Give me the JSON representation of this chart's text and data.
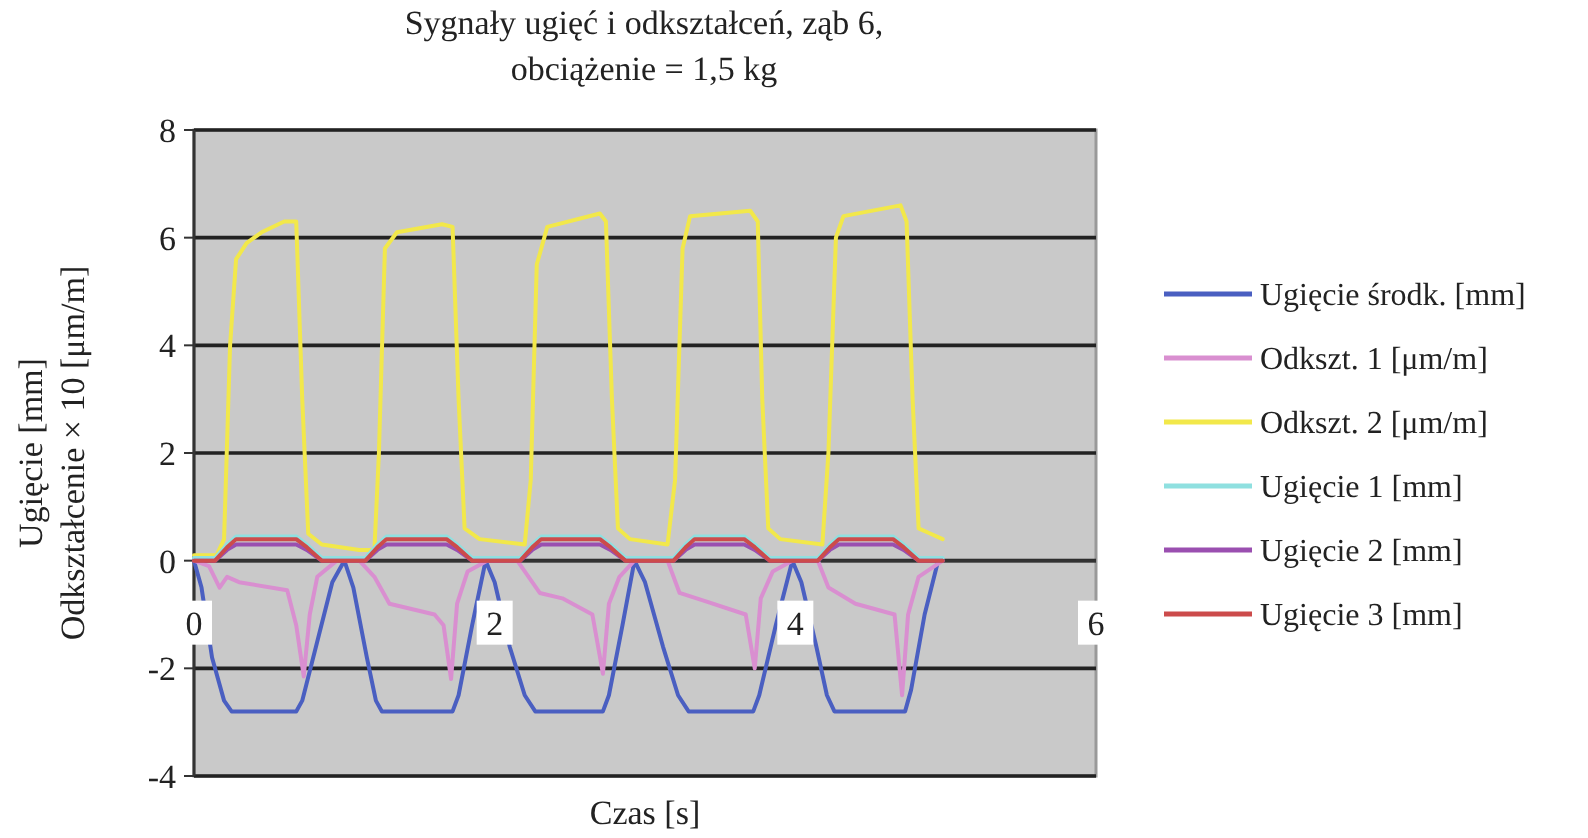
{
  "chart_data": {
    "type": "line",
    "title": "Sygnały ugięć i odkształceń, ząb 6,\nobciążenie = 1,5 kg",
    "xlabel": "Czas [s]",
    "ylabel": "Ugięcie [mm]\nOdkształcenie × 10 [μm/m]",
    "xlim": [
      0,
      6
    ],
    "xticks": [
      0,
      2,
      4,
      6
    ],
    "ylim": [
      -4,
      8
    ],
    "yticks": [
      -4,
      -2,
      0,
      2,
      4,
      6,
      8
    ],
    "grid": "y",
    "legend": "right",
    "line_style": "solid",
    "marker": "none",
    "series": [
      {
        "name": "Ugięcie środk. [mm]",
        "color": "#4a5fc1",
        "x": [
          0,
          0.05,
          0.12,
          0.2,
          0.25,
          0.68,
          0.72,
          0.82,
          0.92,
          1.0,
          1.06,
          1.15,
          1.21,
          1.25,
          1.72,
          1.76,
          1.85,
          1.94,
          2.0,
          2.1,
          2.2,
          2.27,
          2.72,
          2.76,
          2.85,
          2.93,
          3.0,
          3.12,
          3.22,
          3.29,
          3.72,
          3.76,
          3.87,
          3.98,
          4.04,
          4.14,
          4.21,
          4.26,
          4.73,
          4.77,
          4.86,
          4.95
        ],
        "values": [
          0,
          -0.5,
          -1.8,
          -2.6,
          -2.8,
          -2.8,
          -2.6,
          -1.5,
          -0.4,
          0,
          -0.5,
          -1.8,
          -2.6,
          -2.8,
          -2.8,
          -2.5,
          -1.2,
          0,
          -0.4,
          -1.6,
          -2.5,
          -2.8,
          -2.8,
          -2.5,
          -1.2,
          0,
          -0.4,
          -1.6,
          -2.5,
          -2.8,
          -2.8,
          -2.5,
          -1.2,
          0,
          -0.4,
          -1.6,
          -2.5,
          -2.8,
          -2.8,
          -2.4,
          -1.0,
          0
        ]
      },
      {
        "name": "Odkszt. 1 [μm/m]",
        "color": "#d98fd0",
        "x": [
          0,
          0.1,
          0.17,
          0.22,
          0.3,
          0.62,
          0.68,
          0.73,
          0.77,
          0.82,
          0.95,
          1.1,
          1.2,
          1.24,
          1.3,
          1.6,
          1.66,
          1.71,
          1.75,
          1.82,
          1.95,
          2.15,
          2.25,
          2.3,
          2.45,
          2.65,
          2.72,
          2.76,
          2.83,
          2.93,
          3.15,
          3.23,
          3.4,
          3.67,
          3.73,
          3.77,
          3.85,
          3.98,
          4.15,
          4.22,
          4.4,
          4.66,
          4.71,
          4.75,
          4.82,
          4.98
        ],
        "values": [
          0,
          -0.1,
          -0.5,
          -0.3,
          -0.4,
          -0.55,
          -1.2,
          -2.15,
          -1.0,
          -0.3,
          0,
          0,
          -0.3,
          -0.5,
          -0.8,
          -1.0,
          -1.2,
          -2.2,
          -0.8,
          -0.2,
          0,
          0,
          -0.4,
          -0.6,
          -0.7,
          -1.0,
          -2.1,
          -0.8,
          -0.3,
          0,
          0,
          -0.6,
          -0.75,
          -1.0,
          -2.0,
          -0.7,
          -0.2,
          0,
          0,
          -0.5,
          -0.8,
          -1.0,
          -2.5,
          -1.0,
          -0.3,
          0
        ]
      },
      {
        "name": "Odkszt. 2 [μm/m]",
        "color": "#f2e84a",
        "x": [
          0,
          0.15,
          0.2,
          0.24,
          0.28,
          0.35,
          0.45,
          0.6,
          0.68,
          0.72,
          0.76,
          0.85,
          1.1,
          1.2,
          1.23,
          1.27,
          1.35,
          1.65,
          1.72,
          1.76,
          1.8,
          1.9,
          2.2,
          2.24,
          2.28,
          2.35,
          2.7,
          2.74,
          2.78,
          2.82,
          2.9,
          3.15,
          3.2,
          3.25,
          3.3,
          3.7,
          3.75,
          3.78,
          3.82,
          3.9,
          4.18,
          4.22,
          4.27,
          4.32,
          4.7,
          4.74,
          4.78,
          4.82,
          4.9,
          4.98
        ],
        "values": [
          0.1,
          0.1,
          0.4,
          4.0,
          5.6,
          5.9,
          6.1,
          6.3,
          6.3,
          3.0,
          0.5,
          0.3,
          0.2,
          0.2,
          2.0,
          5.8,
          6.1,
          6.25,
          6.2,
          3.0,
          0.6,
          0.4,
          0.3,
          1.5,
          5.5,
          6.2,
          6.45,
          6.3,
          3.0,
          0.6,
          0.4,
          0.3,
          1.5,
          5.8,
          6.4,
          6.5,
          6.3,
          3.0,
          0.6,
          0.4,
          0.3,
          2.0,
          6.0,
          6.4,
          6.6,
          6.3,
          3.0,
          0.6,
          0.5,
          0.4
        ]
      },
      {
        "name": "Ugięcie 1 [mm]",
        "color": "#8fe0e0",
        "x": [
          0,
          0.14,
          0.22,
          0.28,
          0.68,
          0.75,
          0.85,
          1.14,
          1.22,
          1.28,
          1.68,
          1.75,
          1.85,
          2.17,
          2.25,
          2.31,
          2.7,
          2.77,
          2.87,
          3.19,
          3.27,
          3.33,
          3.66,
          3.73,
          3.83,
          4.15,
          4.23,
          4.29,
          4.65,
          4.72,
          4.82,
          4.98
        ],
        "values": [
          0.05,
          0.05,
          0.3,
          0.45,
          0.45,
          0.3,
          0.05,
          0.05,
          0.3,
          0.45,
          0.45,
          0.3,
          0.05,
          0.05,
          0.3,
          0.45,
          0.45,
          0.3,
          0.05,
          0.05,
          0.3,
          0.45,
          0.45,
          0.3,
          0.05,
          0.05,
          0.3,
          0.45,
          0.45,
          0.3,
          0.05,
          0.05
        ]
      },
      {
        "name": "Ugięcie 2 [mm]",
        "color": "#9a4fb0",
        "x": [
          0,
          0.14,
          0.22,
          0.28,
          0.68,
          0.75,
          0.85,
          1.14,
          1.22,
          1.28,
          1.68,
          1.75,
          1.85,
          2.17,
          2.25,
          2.31,
          2.7,
          2.77,
          2.87,
          3.19,
          3.27,
          3.33,
          3.66,
          3.73,
          3.83,
          4.15,
          4.23,
          4.29,
          4.65,
          4.72,
          4.82,
          4.98
        ],
        "values": [
          0,
          0,
          0.2,
          0.3,
          0.3,
          0.2,
          0,
          0,
          0.2,
          0.3,
          0.3,
          0.2,
          0,
          0,
          0.2,
          0.3,
          0.3,
          0.2,
          0,
          0,
          0.2,
          0.3,
          0.3,
          0.2,
          0,
          0,
          0.2,
          0.3,
          0.3,
          0.2,
          0,
          0
        ]
      },
      {
        "name": "Ugięcie 3 [mm]",
        "color": "#cc4b4b",
        "x": [
          0,
          0.14,
          0.22,
          0.28,
          0.68,
          0.75,
          0.85,
          1.14,
          1.22,
          1.28,
          1.68,
          1.75,
          1.85,
          2.17,
          2.25,
          2.31,
          2.7,
          2.77,
          2.87,
          3.19,
          3.27,
          3.33,
          3.66,
          3.73,
          3.83,
          4.15,
          4.23,
          4.29,
          4.65,
          4.72,
          4.82,
          4.98
        ],
        "values": [
          0,
          0,
          0.25,
          0.4,
          0.4,
          0.25,
          0,
          0,
          0.25,
          0.4,
          0.4,
          0.25,
          0,
          0,
          0.25,
          0.4,
          0.4,
          0.25,
          0,
          0,
          0.25,
          0.4,
          0.4,
          0.25,
          0,
          0,
          0.25,
          0.4,
          0.4,
          0.25,
          0,
          0
        ]
      }
    ]
  }
}
